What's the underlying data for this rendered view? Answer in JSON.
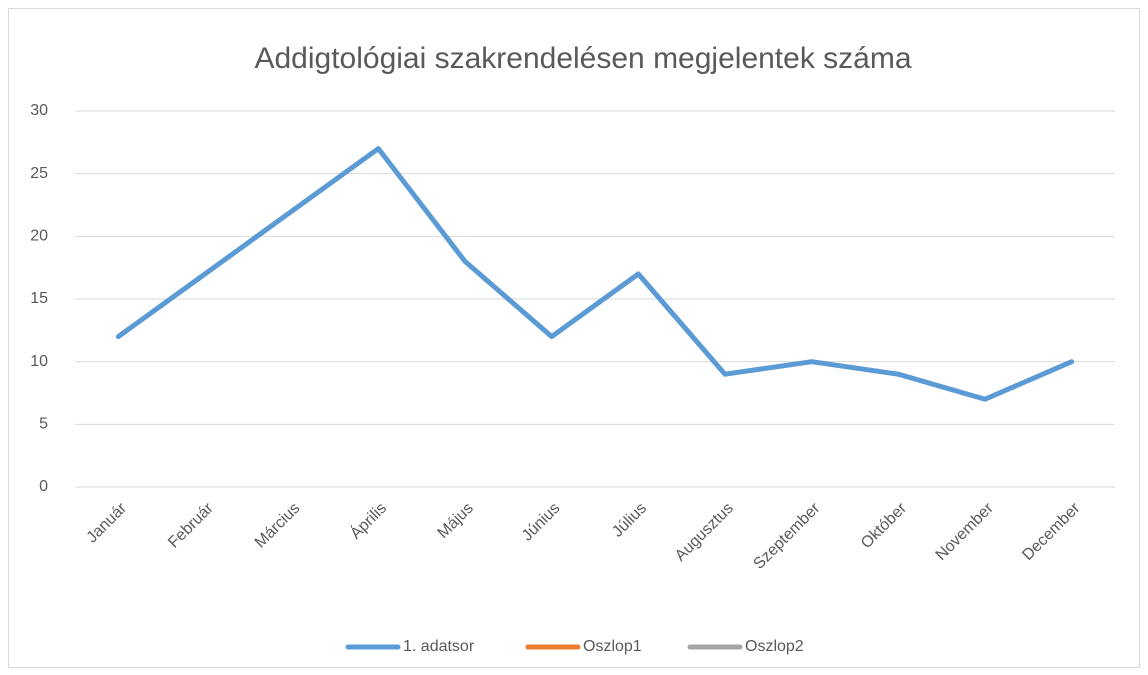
{
  "chart_data": {
    "type": "line",
    "title": "Addigtológiai szakrendelésen megjelentek száma",
    "categories": [
      "Január",
      "Február",
      "Március",
      "Április",
      "Május",
      "Június",
      "Július",
      "Augusztus",
      "Szeptember",
      "Október",
      "November",
      "December"
    ],
    "series": [
      {
        "name": "1. adatsor",
        "color": "#5b9bd5",
        "values": [
          12,
          17,
          22,
          27,
          18,
          12,
          17,
          9,
          10,
          9,
          7,
          10
        ]
      },
      {
        "name": "Oszlop1",
        "color": "#ed7d31",
        "values": [
          null,
          null,
          null,
          null,
          null,
          null,
          null,
          null,
          null,
          null,
          null,
          null
        ]
      },
      {
        "name": "Oszlop2",
        "color": "#a5a5a5",
        "values": [
          null,
          null,
          null,
          null,
          null,
          null,
          null,
          null,
          null,
          null,
          null,
          null
        ]
      }
    ],
    "ylim": [
      0,
      30
    ],
    "yticks": [
      0,
      5,
      10,
      15,
      20,
      25,
      30
    ],
    "grid": true,
    "legend": "bottom"
  }
}
